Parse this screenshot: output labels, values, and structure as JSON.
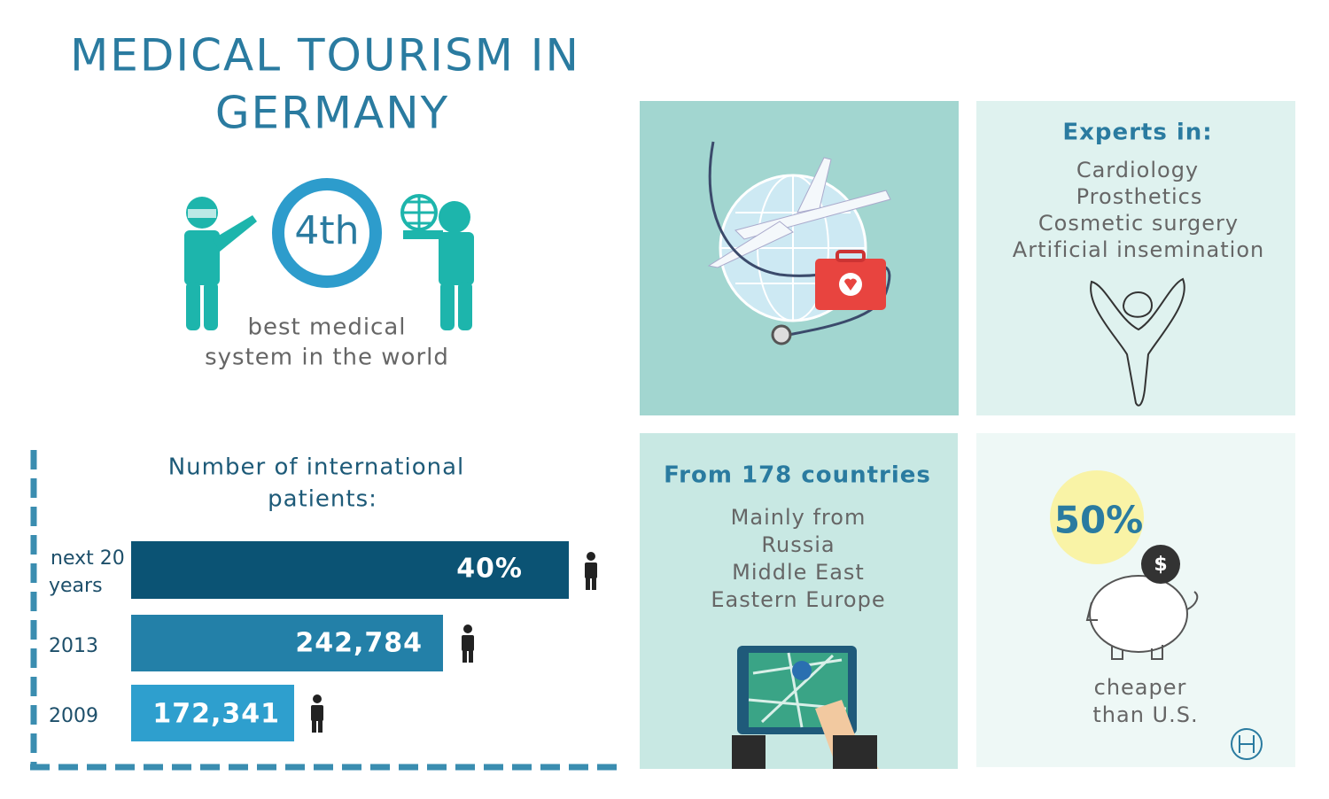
{
  "header": {
    "title": [
      "MEDICAL TOURISM IN",
      "GERMANY"
    ]
  },
  "ranking": {
    "value": "4th",
    "caption": [
      "best medical",
      "system in the world"
    ]
  },
  "patients": {
    "title": [
      "Number of international",
      "patients:"
    ],
    "rows": [
      {
        "label": [
          "next 20",
          "years"
        ],
        "value": "40%"
      },
      {
        "label": [
          "2013"
        ],
        "value": "242,784"
      },
      {
        "label": [
          "2009"
        ],
        "value": "172,341"
      }
    ]
  },
  "experts": {
    "title": "Experts in:",
    "items": [
      "Cardiology",
      "Prosthetics",
      "Cosmetic surgery",
      "Artificial insemination"
    ]
  },
  "countries": {
    "title": "From 178 countries",
    "items": [
      "Mainly from",
      "Russia",
      "Middle East",
      "Eastern Europe"
    ]
  },
  "savings": {
    "value": "50%",
    "caption": [
      "cheaper",
      "than U.S."
    ]
  }
}
